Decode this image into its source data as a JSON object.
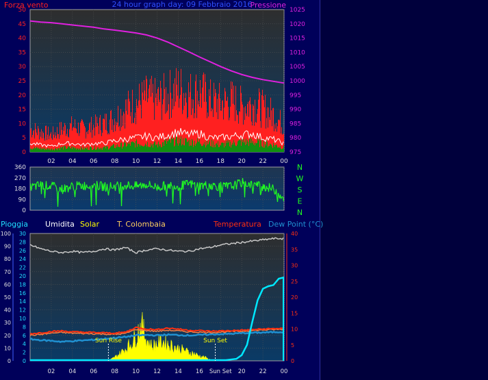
{
  "title": "24 hour graph day: 09 Febbraio 2016",
  "colors": {
    "background": "#00005a",
    "wind": "#ff2020",
    "gust_white": "#ffffff",
    "green_fill": "#109010",
    "pressure": "#e020e0",
    "direction": "#20ff20",
    "humidity": "#c8c8c8",
    "solar": "#ffff00",
    "temperature": "#ff3010",
    "dew_point": "#2090d0",
    "rain": "#00e8ff",
    "wind_label": "#ff2020",
    "rain_label": "#20e0ff"
  },
  "chart_data": [
    {
      "type": "line",
      "name": "wind-pressure",
      "left_axis_label": "Forza vento",
      "right_axis_label": "Pressione",
      "x_ticks": [
        "02",
        "04",
        "06",
        "08",
        "10",
        "12",
        "14",
        "16",
        "18",
        "20",
        "22",
        "00"
      ],
      "left_ticks": [
        0,
        5,
        10,
        15,
        20,
        25,
        30,
        35,
        40,
        45,
        50
      ],
      "right_ticks": [
        975,
        980,
        985,
        990,
        995,
        1000,
        1005,
        1010,
        1015,
        1020,
        1025
      ],
      "ylim_left": [
        0,
        50
      ],
      "ylim_right": [
        975,
        1025
      ],
      "x_range_hours": [
        0,
        24
      ],
      "series": [
        {
          "role": "wind-gust",
          "x": [
            0,
            1,
            2,
            3,
            4,
            5,
            6,
            7,
            8,
            9,
            10,
            11,
            12,
            13,
            14,
            15,
            16,
            17,
            18,
            19,
            20,
            21,
            22,
            23,
            24
          ],
          "values": [
            8,
            7,
            6,
            8,
            9,
            8,
            9,
            10,
            12,
            15,
            17,
            19,
            18,
            20,
            22,
            20,
            21,
            18,
            17,
            18,
            16,
            17,
            15,
            13,
            9
          ]
        },
        {
          "role": "wind-average",
          "x": [
            0,
            1,
            2,
            3,
            4,
            5,
            6,
            7,
            8,
            9,
            10,
            11,
            12,
            13,
            14,
            15,
            16,
            17,
            18,
            19,
            20,
            21,
            22,
            23,
            24
          ],
          "values": [
            3,
            2.5,
            2,
            3,
            3,
            2.5,
            3,
            3,
            4,
            4.5,
            5,
            5.5,
            5,
            6,
            7,
            6,
            6.5,
            5,
            5,
            5.5,
            6,
            6.5,
            5,
            4.5,
            3
          ]
        },
        {
          "role": "wind-minimum",
          "x": [
            0,
            1,
            2,
            3,
            4,
            5,
            6,
            7,
            8,
            9,
            10,
            11,
            12,
            13,
            14,
            15,
            16,
            17,
            18,
            19,
            20,
            21,
            22,
            23,
            24
          ],
          "values": [
            1.5,
            1.2,
            1,
            1.5,
            1.5,
            1.2,
            1.5,
            1.5,
            2,
            2.5,
            3,
            3,
            2.5,
            3.5,
            4,
            3.5,
            3.5,
            3,
            2.5,
            3,
            3.5,
            3.5,
            3,
            2.5,
            1.5
          ]
        },
        {
          "role": "pressure",
          "x": [
            0,
            1,
            2,
            3,
            4,
            5,
            6,
            7,
            8,
            9,
            10,
            11,
            12,
            13,
            14,
            15,
            16,
            17,
            18,
            19,
            20,
            21,
            22,
            23,
            24
          ],
          "values": [
            1021,
            1020.6,
            1020.4,
            1020,
            1019.6,
            1019.2,
            1018.8,
            1018.2,
            1017.8,
            1017.3,
            1016.8,
            1016.1,
            1015,
            1013.6,
            1011.9,
            1010.2,
            1008.4,
            1006.7,
            1005,
            1003.5,
            1002.2,
            1001.2,
            1000.4,
            999.8,
            999.2
          ]
        }
      ]
    },
    {
      "type": "scatter",
      "name": "wind-direction",
      "left_ticks": [
        0,
        90,
        180,
        270,
        360
      ],
      "compass_labels": [
        "N",
        "W",
        "S",
        "E",
        "N"
      ],
      "ylim": [
        0,
        360
      ],
      "x_range_hours": [
        0,
        24
      ],
      "series": [
        {
          "role": "direction",
          "x": [
            0,
            1,
            2,
            3,
            4,
            5,
            6,
            7,
            8,
            9,
            10,
            11,
            12,
            13,
            14,
            15,
            16,
            17,
            18,
            19,
            20,
            21,
            22,
            23,
            24
          ],
          "values": [
            190,
            210,
            200,
            175,
            200,
            205,
            210,
            195,
            200,
            210,
            200,
            215,
            190,
            210,
            200,
            220,
            205,
            210,
            195,
            200,
            230,
            215,
            200,
            175,
            100
          ]
        }
      ]
    },
    {
      "type": "line",
      "name": "temperature-humidity-solar-rain",
      "legend": [
        {
          "label": "Pioggia",
          "role": "rain"
        },
        {
          "label": "Umidita",
          "role": "humidity"
        },
        {
          "label": "Solar",
          "role": "solar"
        },
        {
          "label": "T. Colombaia",
          "role": "t-colombaia"
        },
        {
          "label": "Temperatura",
          "role": "temperature"
        },
        {
          "label": "Dew Point (°C)",
          "role": "dew-point"
        }
      ],
      "rain_ticks": [
        0,
        10,
        20,
        30,
        40,
        50,
        60,
        70,
        80,
        90,
        100
      ],
      "humidity_ticks": [
        0,
        2,
        4,
        6,
        8,
        10,
        12,
        14,
        16,
        18,
        20,
        22,
        24,
        26,
        28,
        30
      ],
      "temp_ticks": [
        0,
        5,
        10,
        15,
        20,
        25,
        30,
        35,
        40
      ],
      "ylim_left": [
        0,
        100
      ],
      "ylim_right": [
        0,
        40
      ],
      "x_ticks": [
        "02",
        "04",
        "06",
        "08",
        "10",
        "12",
        "14",
        "16",
        "Sun Set",
        "20",
        "22",
        "00"
      ],
      "x_range_hours": [
        0,
        24
      ],
      "annotations": [
        {
          "label": "Sun Rise",
          "hour": 7.4
        },
        {
          "label": "Sun Set",
          "hour": 17.5
        }
      ],
      "series": [
        {
          "role": "humidity",
          "x": [
            0,
            1,
            2,
            3,
            4,
            5,
            6,
            7,
            8,
            9,
            10,
            11,
            12,
            13,
            14,
            15,
            16,
            17,
            18,
            19,
            20,
            21,
            22,
            23,
            24
          ],
          "values": [
            91,
            88,
            86,
            85,
            86,
            85,
            86,
            88,
            87,
            89,
            85,
            87,
            88,
            87,
            86,
            86,
            88,
            89,
            91,
            92,
            93,
            94,
            95,
            96,
            96
          ]
        },
        {
          "role": "temperature",
          "x": [
            0,
            1,
            2,
            3,
            4,
            5,
            6,
            7,
            8,
            9,
            10,
            11,
            12,
            13,
            14,
            15,
            16,
            17,
            18,
            19,
            20,
            21,
            22,
            23,
            24
          ],
          "values": [
            8.5,
            8.8,
            9.2,
            9.4,
            9.1,
            9.0,
            8.9,
            8.8,
            8.7,
            9.0,
            10.5,
            10.0,
            9.8,
            10.3,
            10.0,
            9.6,
            9.5,
            9.3,
            9.4,
            9.5,
            9.6,
            9.8,
            10.0,
            10.1,
            10.2
          ]
        },
        {
          "role": "t-colombaia",
          "x": [
            0,
            1,
            2,
            3,
            4,
            5,
            6,
            7,
            8,
            9,
            10,
            11,
            12,
            13,
            14,
            15,
            16,
            17,
            18,
            19,
            20,
            21,
            22,
            23,
            24
          ],
          "values": [
            8.0,
            8.3,
            8.7,
            8.9,
            8.7,
            8.6,
            8.5,
            8.4,
            8.3,
            8.6,
            9.9,
            9.5,
            9.3,
            9.6,
            9.4,
            9.1,
            9.0,
            8.9,
            9.0,
            9.2,
            9.3,
            9.5,
            9.7,
            9.8,
            9.9
          ]
        },
        {
          "role": "dew-point",
          "x": [
            0,
            1,
            2,
            3,
            4,
            5,
            6,
            7,
            8,
            9,
            10,
            11,
            12,
            13,
            14,
            15,
            16,
            17,
            18,
            19,
            20,
            21,
            22,
            23,
            24
          ],
          "values": [
            6.8,
            6.5,
            6.3,
            6.0,
            6.2,
            6.4,
            6.6,
            6.9,
            7.2,
            7.5,
            8.0,
            8.1,
            8.0,
            8.2,
            8.1,
            8.0,
            8.1,
            8.3,
            8.4,
            8.5,
            8.7,
            8.8,
            8.9,
            9.0,
            9.1
          ]
        },
        {
          "role": "solar",
          "x": [
            7.4,
            8,
            8.5,
            9,
            9.5,
            10,
            10.5,
            11,
            11.5,
            12,
            12.5,
            13,
            13.5,
            14,
            14.5,
            15,
            15.5,
            16,
            16.5,
            17,
            17.5
          ],
          "values": [
            0,
            3,
            6,
            10,
            14,
            20,
            30,
            18,
            12,
            14,
            16,
            14,
            12,
            10,
            9,
            7,
            6,
            4,
            3,
            1,
            0
          ]
        },
        {
          "role": "rain",
          "x": [
            0,
            17.5,
            18.5,
            19.5,
            20,
            20.5,
            21,
            21.5,
            22,
            22.5,
            23,
            23.5,
            24
          ],
          "values": [
            0,
            0,
            0,
            1,
            4,
            12,
            30,
            47,
            56,
            58,
            59,
            64,
            65
          ]
        }
      ]
    }
  ]
}
